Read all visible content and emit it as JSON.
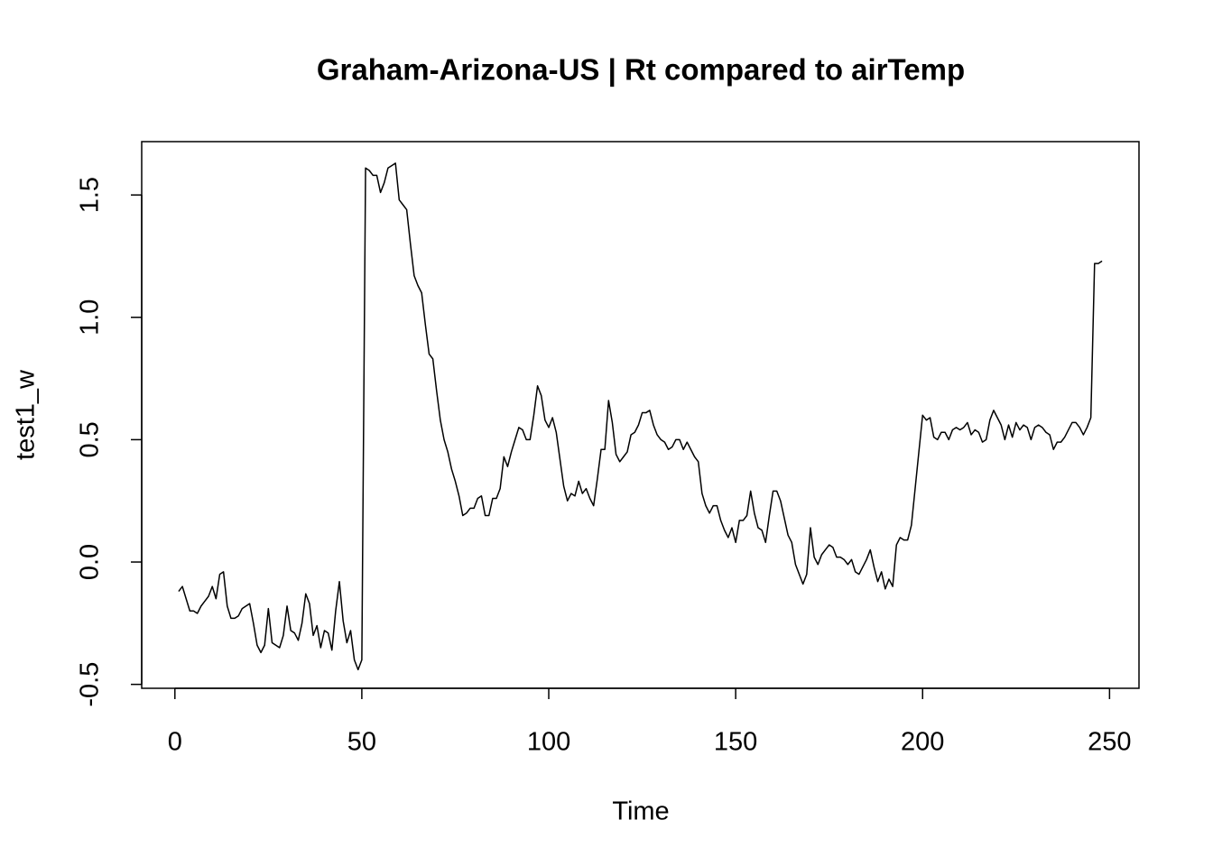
{
  "chart_data": {
    "type": "line",
    "title": "Graham-Arizona-US | Rt compared to airTemp",
    "x_label": "Time",
    "y_label": "test1_w",
    "xlim": [
      -8.88,
      257.88
    ],
    "ylim": [
      -0.516,
      1.718
    ],
    "xticks": [
      0,
      50,
      100,
      150,
      200,
      250
    ],
    "yticks": [
      -0.5,
      {
        "value": 0,
        "label": "0.0"
      },
      0.5,
      {
        "value": 1,
        "label": "1.0"
      },
      1.5
    ],
    "color": "#000000",
    "x": [
      1,
      2,
      3,
      4,
      5,
      6,
      7,
      8,
      9,
      10,
      11,
      12,
      13,
      14,
      15,
      16,
      17,
      18,
      19,
      20,
      21,
      22,
      23,
      24,
      25,
      26,
      27,
      28,
      29,
      30,
      31,
      32,
      33,
      34,
      35,
      36,
      37,
      38,
      39,
      40,
      41,
      42,
      43,
      44,
      45,
      46,
      47,
      48,
      49,
      50,
      51,
      52,
      53,
      54,
      55,
      56,
      57,
      58,
      59,
      60,
      61,
      62,
      63,
      64,
      65,
      66,
      67,
      68,
      69,
      70,
      71,
      72,
      73,
      74,
      75,
      76,
      77,
      78,
      79,
      80,
      81,
      82,
      83,
      84,
      85,
      86,
      87,
      88,
      89,
      90,
      91,
      92,
      93,
      94,
      95,
      96,
      97,
      98,
      99,
      100,
      101,
      102,
      103,
      104,
      105,
      106,
      107,
      108,
      109,
      110,
      111,
      112,
      113,
      114,
      115,
      116,
      117,
      118,
      119,
      120,
      121,
      122,
      123,
      124,
      125,
      126,
      127,
      128,
      129,
      130,
      131,
      132,
      133,
      134,
      135,
      136,
      137,
      138,
      139,
      140,
      141,
      142,
      143,
      144,
      145,
      146,
      147,
      148,
      149,
      150,
      151,
      152,
      153,
      154,
      155,
      156,
      157,
      158,
      159,
      160,
      161,
      162,
      163,
      164,
      165,
      166,
      167,
      168,
      169,
      170,
      171,
      172,
      173,
      174,
      175,
      176,
      177,
      178,
      179,
      180,
      181,
      182,
      183,
      184,
      185,
      186,
      187,
      188,
      189,
      190,
      191,
      192,
      193,
      194,
      195,
      196,
      197,
      198,
      199,
      200,
      201,
      202,
      203,
      204,
      205,
      206,
      207,
      208,
      209,
      210,
      211,
      212,
      213,
      214,
      215,
      216,
      217,
      218,
      219,
      220,
      221,
      222,
      223,
      224,
      225,
      226,
      227,
      228,
      229,
      230,
      231,
      232,
      233,
      234,
      235,
      236,
      237,
      238,
      239,
      240,
      241,
      242,
      243,
      244,
      245,
      246,
      247,
      248
    ],
    "values": [
      -0.12,
      -0.1,
      -0.15,
      -0.2,
      -0.2,
      -0.21,
      -0.18,
      -0.16,
      -0.14,
      -0.1,
      -0.15,
      -0.05,
      -0.04,
      -0.18,
      -0.23,
      -0.23,
      -0.22,
      -0.19,
      -0.18,
      -0.17,
      -0.25,
      -0.34,
      -0.37,
      -0.34,
      -0.19,
      -0.33,
      -0.34,
      -0.35,
      -0.3,
      -0.18,
      -0.28,
      -0.29,
      -0.32,
      -0.25,
      -0.13,
      -0.17,
      -0.3,
      -0.26,
      -0.35,
      -0.28,
      -0.29,
      -0.36,
      -0.2,
      -0.08,
      -0.24,
      -0.33,
      -0.28,
      -0.4,
      -0.44,
      -0.4,
      1.61,
      1.6,
      1.58,
      1.58,
      1.51,
      1.55,
      1.61,
      1.62,
      1.63,
      1.48,
      1.46,
      1.44,
      1.3,
      1.17,
      1.13,
      1.1,
      0.97,
      0.85,
      0.83,
      0.7,
      0.58,
      0.5,
      0.45,
      0.38,
      0.33,
      0.27,
      0.19,
      0.2,
      0.22,
      0.22,
      0.26,
      0.27,
      0.19,
      0.19,
      0.26,
      0.26,
      0.3,
      0.43,
      0.39,
      0.45,
      0.5,
      0.55,
      0.54,
      0.5,
      0.5,
      0.6,
      0.72,
      0.68,
      0.58,
      0.55,
      0.59,
      0.53,
      0.42,
      0.31,
      0.25,
      0.28,
      0.27,
      0.33,
      0.28,
      0.3,
      0.26,
      0.23,
      0.34,
      0.46,
      0.46,
      0.66,
      0.57,
      0.44,
      0.41,
      0.43,
      0.45,
      0.52,
      0.53,
      0.56,
      0.61,
      0.61,
      0.62,
      0.56,
      0.52,
      0.5,
      0.49,
      0.46,
      0.47,
      0.5,
      0.5,
      0.46,
      0.49,
      0.46,
      0.43,
      0.41,
      0.28,
      0.23,
      0.2,
      0.23,
      0.23,
      0.17,
      0.13,
      0.1,
      0.14,
      0.08,
      0.17,
      0.17,
      0.19,
      0.29,
      0.2,
      0.14,
      0.13,
      0.08,
      0.19,
      0.29,
      0.29,
      0.25,
      0.18,
      0.11,
      0.08,
      -0.01,
      -0.05,
      -0.09,
      -0.05,
      0.14,
      0.02,
      -0.01,
      0.03,
      0.05,
      0.07,
      0.06,
      0.02,
      0.02,
      0.01,
      -0.01,
      0.01,
      -0.04,
      -0.05,
      -0.02,
      0.01,
      0.05,
      -0.02,
      -0.08,
      -0.04,
      -0.11,
      -0.07,
      -0.1,
      0.07,
      0.1,
      0.09,
      0.09,
      0.15,
      0.3,
      0.45,
      0.6,
      0.58,
      0.59,
      0.51,
      0.5,
      0.53,
      0.53,
      0.5,
      0.54,
      0.55,
      0.54,
      0.55,
      0.57,
      0.52,
      0.54,
      0.53,
      0.49,
      0.5,
      0.58,
      0.62,
      0.59,
      0.56,
      0.5,
      0.56,
      0.51,
      0.57,
      0.54,
      0.56,
      0.55,
      0.5,
      0.55,
      0.56,
      0.55,
      0.53,
      0.52,
      0.46,
      0.49,
      0.49,
      0.51,
      0.54,
      0.57,
      0.57,
      0.55,
      0.52,
      0.55,
      0.59,
      1.22,
      1.22,
      1.23
    ]
  }
}
